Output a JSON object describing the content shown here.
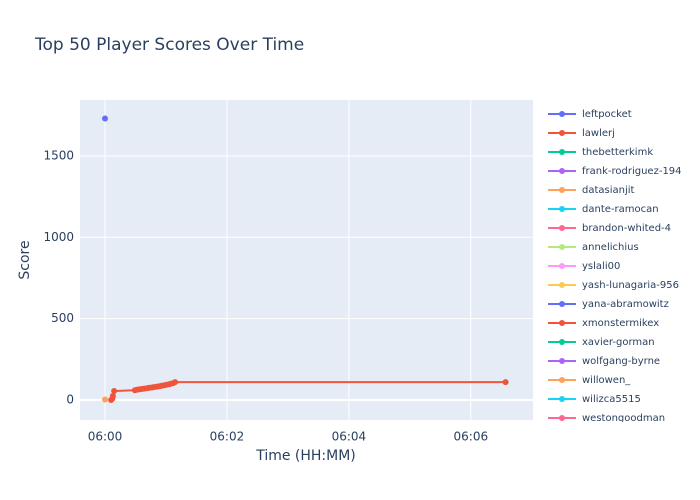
{
  "chart_data": {
    "type": "line",
    "title": "Top 50 Player Scores Over Time",
    "x_label": "Time (HH:MM)",
    "y_label": "Score",
    "xlim": [
      359.59,
      367.02
    ],
    "xticks": [
      {
        "value": 360,
        "label": "06:00"
      },
      {
        "value": 362,
        "label": "06:02"
      },
      {
        "value": 364,
        "label": "06:04"
      },
      {
        "value": 366,
        "label": "06:06"
      }
    ],
    "ylim": [
      -123,
      1844
    ],
    "yticks": [
      0,
      500,
      1000,
      1500
    ],
    "grid": true,
    "legend": "right",
    "series": [
      {
        "name": "leftpocket",
        "color": "#636efa",
        "x": [
          360
        ],
        "values": [
          1730
        ]
      },
      {
        "name": "lawlerj",
        "color": "#EF553B",
        "x": [
          360.1,
          360.12,
          360.13,
          360.15,
          360.49,
          360.52,
          360.56,
          360.59,
          360.63,
          360.66,
          360.7,
          360.73,
          360.77,
          360.8,
          360.84,
          360.87,
          360.91,
          360.94,
          360.98,
          361.01,
          361.05,
          361.08,
          361.12,
          361.15,
          366.57
        ],
        "values": [
          0,
          8,
          25,
          55,
          60,
          63,
          65,
          67,
          69,
          71,
          73,
          75,
          77,
          79,
          81,
          83,
          86,
          88,
          91,
          94,
          97,
          100,
          104,
          110,
          110
        ]
      },
      {
        "name": "thebetterkimk",
        "color": "#00cc96",
        "x": [],
        "values": []
      },
      {
        "name": "frank-rodriguez-194",
        "color": "#ab63fa",
        "x": [],
        "values": []
      },
      {
        "name": "datasianjit",
        "color": "#FFA15A",
        "x": [
          360
        ],
        "values": [
          3
        ]
      },
      {
        "name": "dante-ramocan",
        "color": "#19d3f3",
        "x": [],
        "values": []
      },
      {
        "name": "brandon-whited-4",
        "color": "#FF6692",
        "x": [],
        "values": []
      },
      {
        "name": "annelichius",
        "color": "#B6E880",
        "x": [],
        "values": []
      },
      {
        "name": "yslali00",
        "color": "#FF97FF",
        "x": [],
        "values": []
      },
      {
        "name": "yash-lunagaria-956",
        "color": "#FECB52",
        "x": [],
        "values": []
      },
      {
        "name": "yana-abramowitz",
        "color": "#636efa",
        "x": [],
        "values": []
      },
      {
        "name": "xmonstermikex",
        "color": "#EF553B",
        "x": [],
        "values": []
      },
      {
        "name": "xavier-gorman",
        "color": "#00cc96",
        "x": [],
        "values": []
      },
      {
        "name": "wolfgang-byrne",
        "color": "#ab63fa",
        "x": [],
        "values": []
      },
      {
        "name": "willowen_",
        "color": "#FFA15A",
        "x": [],
        "values": []
      },
      {
        "name": "wilizca5515",
        "color": "#19d3f3",
        "x": [],
        "values": []
      },
      {
        "name": "westongoodman",
        "color": "#FF6692",
        "x": [],
        "values": []
      }
    ]
  }
}
